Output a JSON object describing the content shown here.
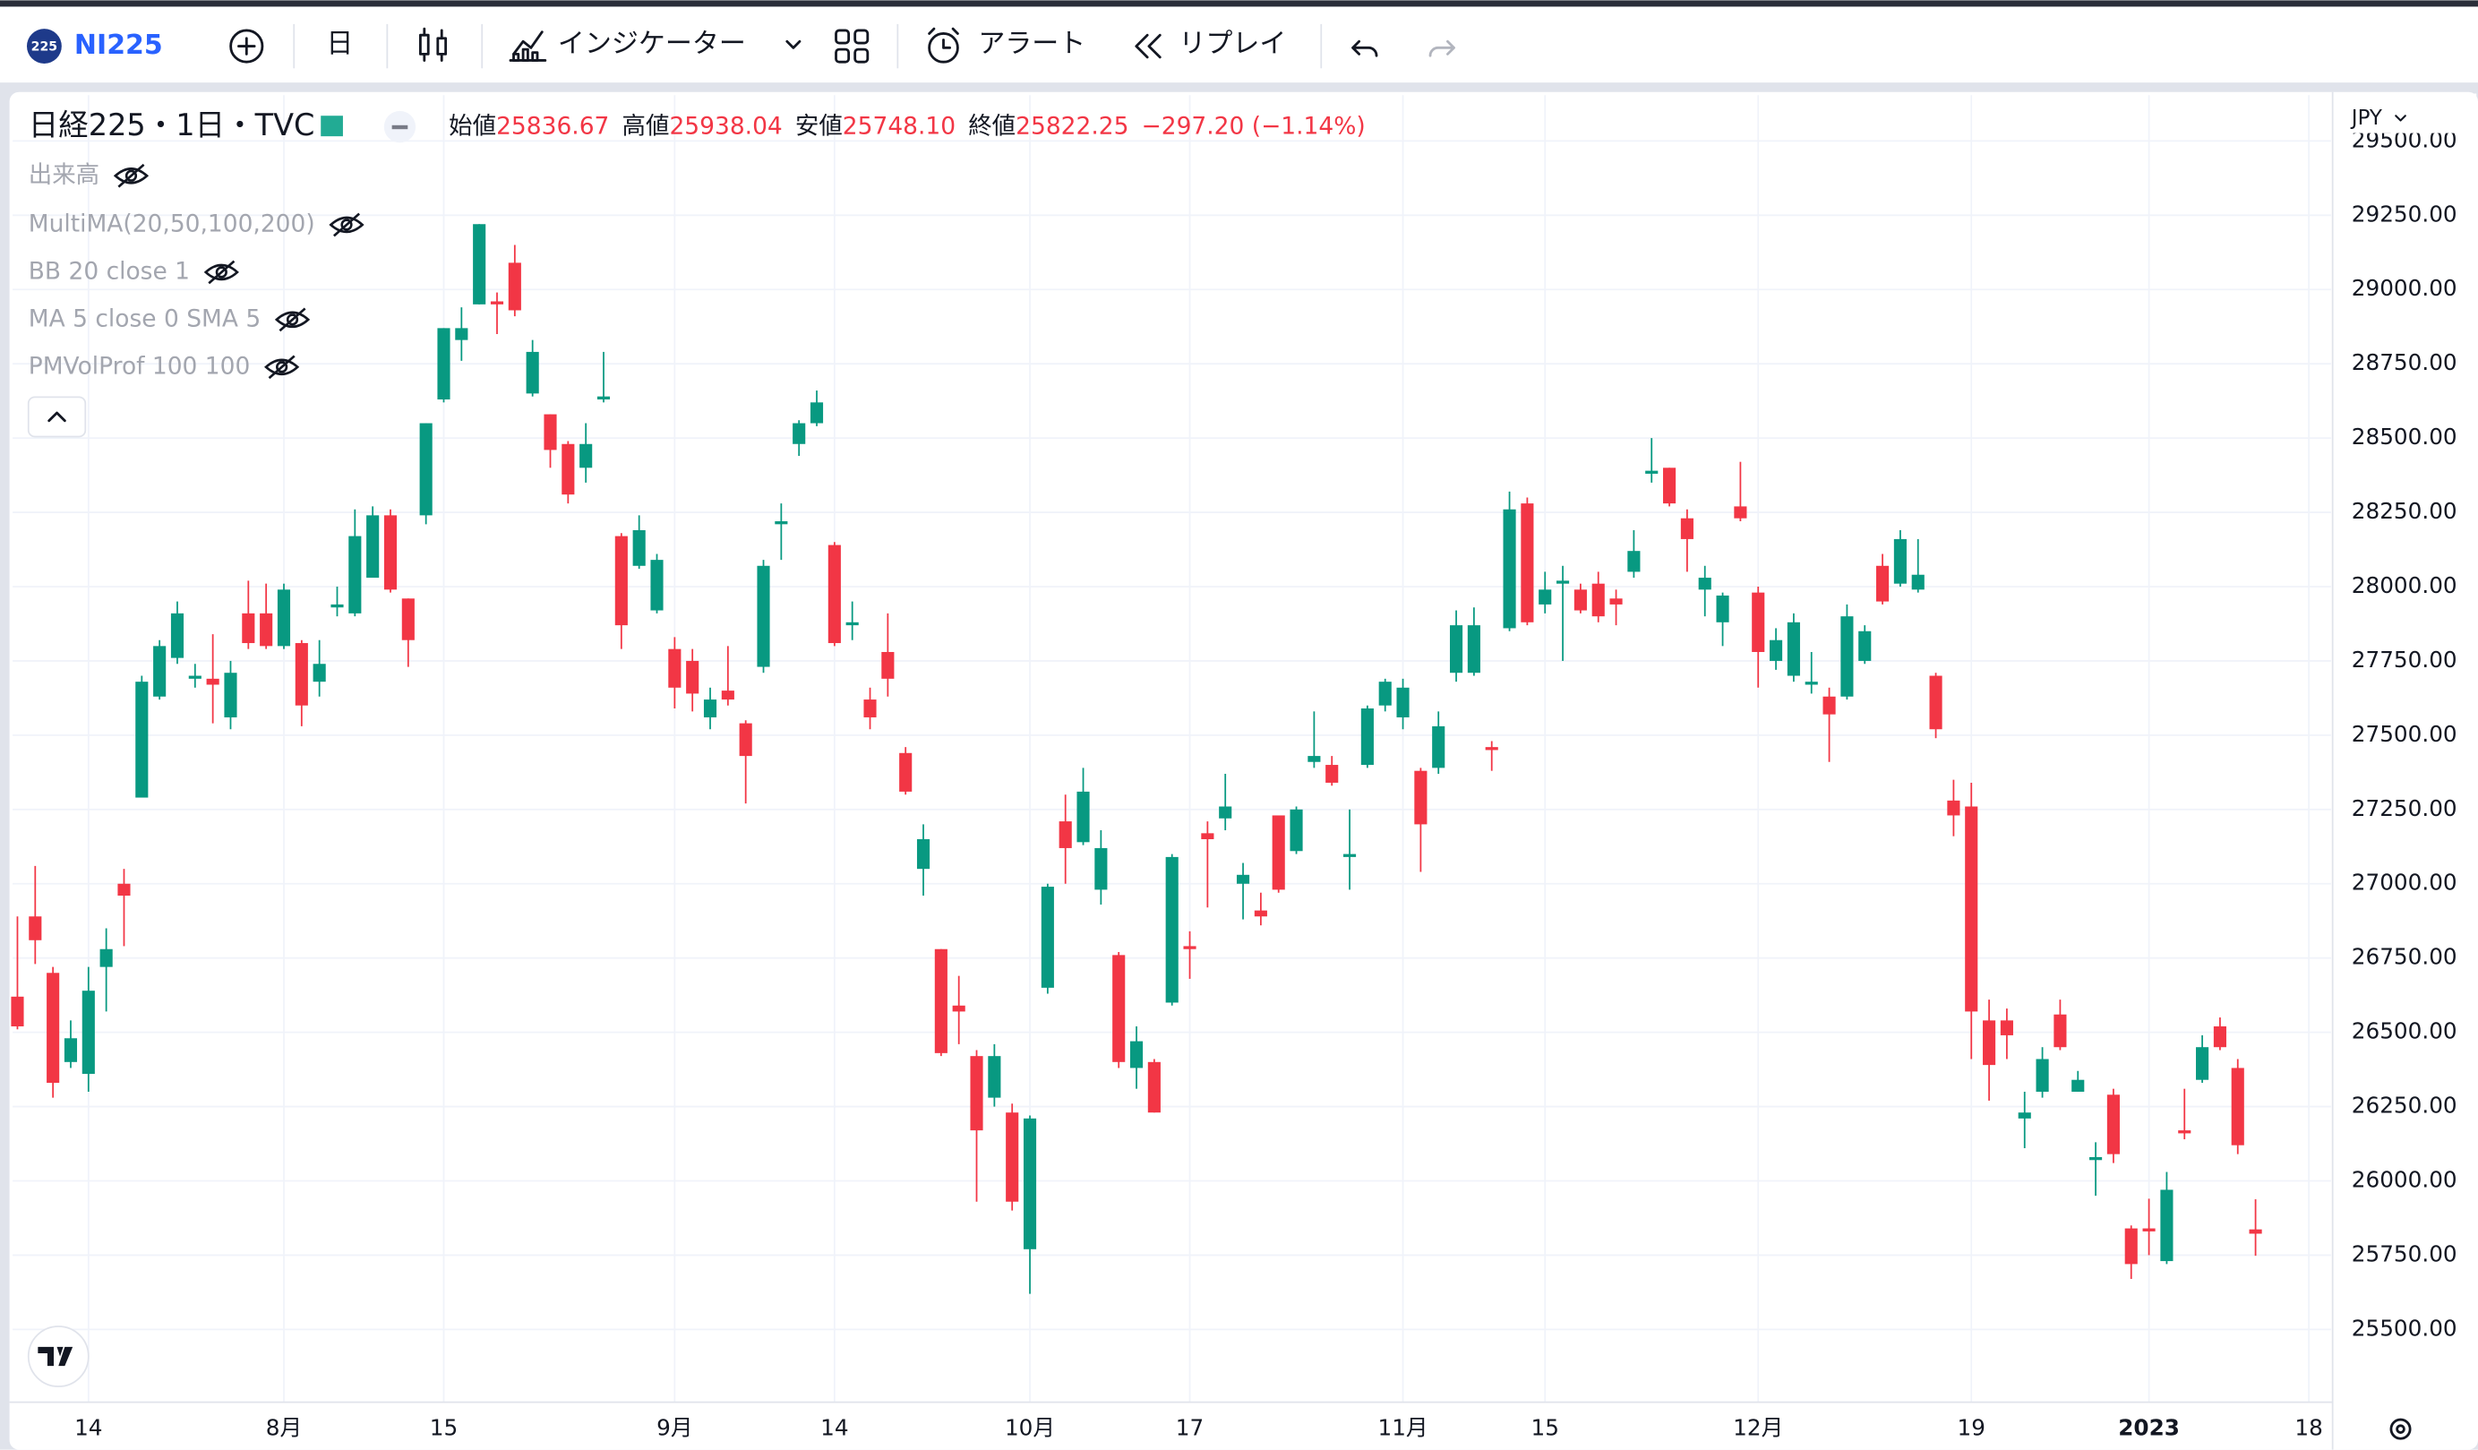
{
  "toolbar": {
    "badge": "225",
    "symbol": "NI225",
    "interval": "日",
    "indicators": "インジケーター",
    "alert": "アラート",
    "replay": "リプレイ"
  },
  "legend": {
    "title": "日経225・1日・TVC",
    "ohlc": [
      {
        "label": "始値",
        "value": "25836.67"
      },
      {
        "label": "高値",
        "value": "25938.04"
      },
      {
        "label": "安値",
        "value": "25748.10"
      },
      {
        "label": "終値",
        "value": "25822.25"
      }
    ],
    "change": "−297.20 (−1.14%)",
    "studies": [
      "出来高",
      "MultiMA(20,50,100,200)",
      "BB 20 close 1",
      "MA 5 close 0 SMA 5",
      "PMVolProf 100 100"
    ]
  },
  "currency": "JPY",
  "chart_data": {
    "type": "candlestick",
    "up_color": "#089981",
    "down_color": "#f23645",
    "grid": true,
    "open": [
      26620,
      26890,
      26700,
      26400,
      26360,
      26720,
      27000,
      27290,
      27630,
      27760,
      27690,
      27690,
      27560,
      27910,
      27910,
      27800,
      27810,
      27680,
      27930,
      27910,
      28030,
      28240,
      27960,
      28240,
      28630,
      28830,
      28950,
      28960,
      29090,
      28650,
      28580,
      28480,
      28400,
      28630,
      28170,
      28070,
      27920,
      27790,
      27750,
      27560,
      27650,
      27540,
      27730,
      28210,
      28480,
      28550,
      28140,
      27870,
      27620,
      27780,
      27440,
      27050,
      26780,
      26590,
      26420,
      26280,
      26230,
      25770,
      26650,
      27210,
      27140,
      26980,
      26760,
      26380,
      26400,
      26600,
      26790,
      27170,
      27220,
      27000,
      26910,
      27230,
      27110,
      27410,
      27400,
      27090,
      27400,
      27600,
      27560,
      27380,
      27390,
      27710,
      27710,
      27460,
      27860,
      28280,
      27940,
      28010,
      27990,
      28010,
      27960,
      28050,
      28380,
      28400,
      28230,
      27990,
      27880,
      28270,
      27980,
      27750,
      27700,
      27670,
      27630,
      27630,
      27750,
      28070,
      28010,
      27990,
      27700,
      27280,
      27260,
      26540,
      26540,
      26210,
      26300,
      26560,
      26300,
      26070,
      26290,
      25840,
      25840,
      25730,
      26170,
      26340,
      26520,
      26380,
      25836.67
    ],
    "high": [
      26890,
      27060,
      26720,
      26540,
      26720,
      26850,
      27050,
      27700,
      27820,
      27950,
      27740,
      27840,
      27750,
      28020,
      28010,
      28010,
      27820,
      27820,
      28000,
      28260,
      28270,
      28260,
      27960,
      28550,
      28870,
      28940,
      29220,
      28990,
      29150,
      28830,
      28580,
      28490,
      28550,
      28790,
      28180,
      28240,
      28110,
      27830,
      27790,
      27660,
      27800,
      27550,
      28090,
      28280,
      28560,
      28660,
      28150,
      27950,
      27660,
      27910,
      27460,
      27200,
      26780,
      26690,
      26440,
      26460,
      26260,
      26220,
      27000,
      27300,
      27390,
      27180,
      26770,
      26520,
      26410,
      27100,
      26840,
      27210,
      27370,
      27070,
      26970,
      27230,
      27260,
      27580,
      27430,
      27250,
      27600,
      27690,
      27690,
      27390,
      27580,
      27920,
      27930,
      27480,
      28320,
      28300,
      28050,
      28070,
      28010,
      28050,
      27990,
      28190,
      28500,
      28400,
      28260,
      28070,
      27980,
      28420,
      28000,
      27860,
      27910,
      27780,
      27660,
      27940,
      27870,
      28110,
      28190,
      28160,
      27710,
      27350,
      27340,
      26610,
      26580,
      26300,
      26450,
      26610,
      26370,
      26130,
      26310,
      25850,
      25940,
      26030,
      26310,
      26490,
      26550,
      26410,
      25938.04
    ],
    "low": [
      26510,
      26730,
      26280,
      26380,
      26300,
      26570,
      26790,
      27290,
      27620,
      27740,
      27660,
      27540,
      27520,
      27790,
      27790,
      27790,
      27530,
      27630,
      27900,
      27900,
      28030,
      27980,
      27730,
      28210,
      28620,
      28760,
      28950,
      28850,
      28910,
      28640,
      28400,
      28280,
      28350,
      28620,
      27790,
      28060,
      27910,
      27590,
      27580,
      27520,
      27600,
      27270,
      27710,
      28090,
      28440,
      28540,
      27800,
      27820,
      27520,
      27630,
      27300,
      26960,
      26420,
      26460,
      25930,
      26250,
      25900,
      25620,
      26630,
      27000,
      27130,
      26930,
      26380,
      26310,
      26230,
      26590,
      26680,
      26920,
      27180,
      26880,
      26860,
      26970,
      27100,
      27390,
      27330,
      26980,
      27390,
      27580,
      27520,
      27040,
      27370,
      27680,
      27700,
      27380,
      27850,
      27870,
      27910,
      27750,
      27910,
      27880,
      27870,
      28030,
      28350,
      28270,
      28050,
      27900,
      27800,
      28220,
      27660,
      27720,
      27680,
      27640,
      27410,
      27620,
      27740,
      27940,
      28000,
      27980,
      27490,
      27160,
      26410,
      26270,
      26410,
      26110,
      26280,
      26440,
      26300,
      25950,
      26060,
      25670,
      25750,
      25720,
      26140,
      26330,
      26440,
      26090,
      25748.1
    ],
    "close": [
      26520,
      26810,
      26330,
      26480,
      26640,
      26780,
      26960,
      27680,
      27800,
      27910,
      27700,
      27670,
      27710,
      27810,
      27800,
      27990,
      27600,
      27740,
      27940,
      28170,
      28240,
      27990,
      27820,
      28550,
      28870,
      28870,
      29220,
      28950,
      28930,
      28790,
      28460,
      28310,
      28480,
      28640,
      27870,
      28190,
      28090,
      27660,
      27640,
      27620,
      27620,
      27430,
      28070,
      28220,
      28550,
      28620,
      27810,
      27880,
      27560,
      27690,
      27310,
      27150,
      26430,
      26570,
      26170,
      26420,
      25930,
      26210,
      26990,
      27120,
      27310,
      27120,
      26400,
      26470,
      26230,
      27090,
      26780,
      27150,
      27260,
      27030,
      26890,
      26980,
      27250,
      27430,
      27340,
      27100,
      27590,
      27680,
      27660,
      27200,
      27530,
      27870,
      27870,
      27450,
      28260,
      27880,
      27990,
      28020,
      27920,
      27900,
      27940,
      28120,
      28390,
      28280,
      28160,
      28030,
      27970,
      28230,
      27780,
      27820,
      27880,
      27680,
      27570,
      27900,
      27850,
      27950,
      28160,
      28040,
      27520,
      27230,
      26570,
      26390,
      26490,
      26230,
      26410,
      26450,
      26340,
      26080,
      26090,
      25720,
      25830,
      25970,
      26160,
      26450,
      26450,
      26120,
      25822.25
    ],
    "xlim": [
      -0.27,
      130.25
    ],
    "xticks": [
      {
        "value": 4,
        "label": "14"
      },
      {
        "value": 15,
        "label": "8月"
      },
      {
        "value": 24,
        "label": "15"
      },
      {
        "value": 37,
        "label": "9月"
      },
      {
        "value": 46,
        "label": "14"
      },
      {
        "value": 57,
        "label": "10月"
      },
      {
        "value": 66,
        "label": "17"
      },
      {
        "value": 78,
        "label": "11月"
      },
      {
        "value": 86,
        "label": "15"
      },
      {
        "value": 98,
        "label": "12月"
      },
      {
        "value": 110,
        "label": "19"
      },
      {
        "value": 120,
        "label": "2023"
      },
      {
        "value": 129,
        "label": "18"
      }
    ],
    "ylim": [
      25255,
      29654
    ],
    "yticks": [
      {
        "value": 25500,
        "label": "25500.00"
      },
      {
        "value": 25750,
        "label": "25750.00"
      },
      {
        "value": 26000,
        "label": "26000.00"
      },
      {
        "value": 26250,
        "label": "26250.00"
      },
      {
        "value": 26500,
        "label": "26500.00"
      },
      {
        "value": 26750,
        "label": "26750.00"
      },
      {
        "value": 27000,
        "label": "27000.00"
      },
      {
        "value": 27250,
        "label": "27250.00"
      },
      {
        "value": 27500,
        "label": "27500.00"
      },
      {
        "value": 27750,
        "label": "27750.00"
      },
      {
        "value": 28000,
        "label": "28000.00"
      },
      {
        "value": 28250,
        "label": "28250.00"
      },
      {
        "value": 28500,
        "label": "28500.00"
      },
      {
        "value": 28750,
        "label": "28750.00"
      },
      {
        "value": 29000,
        "label": "29000.00"
      },
      {
        "value": 29250,
        "label": "29250.00"
      },
      {
        "value": 29500,
        "label": "29500.00"
      }
    ]
  }
}
